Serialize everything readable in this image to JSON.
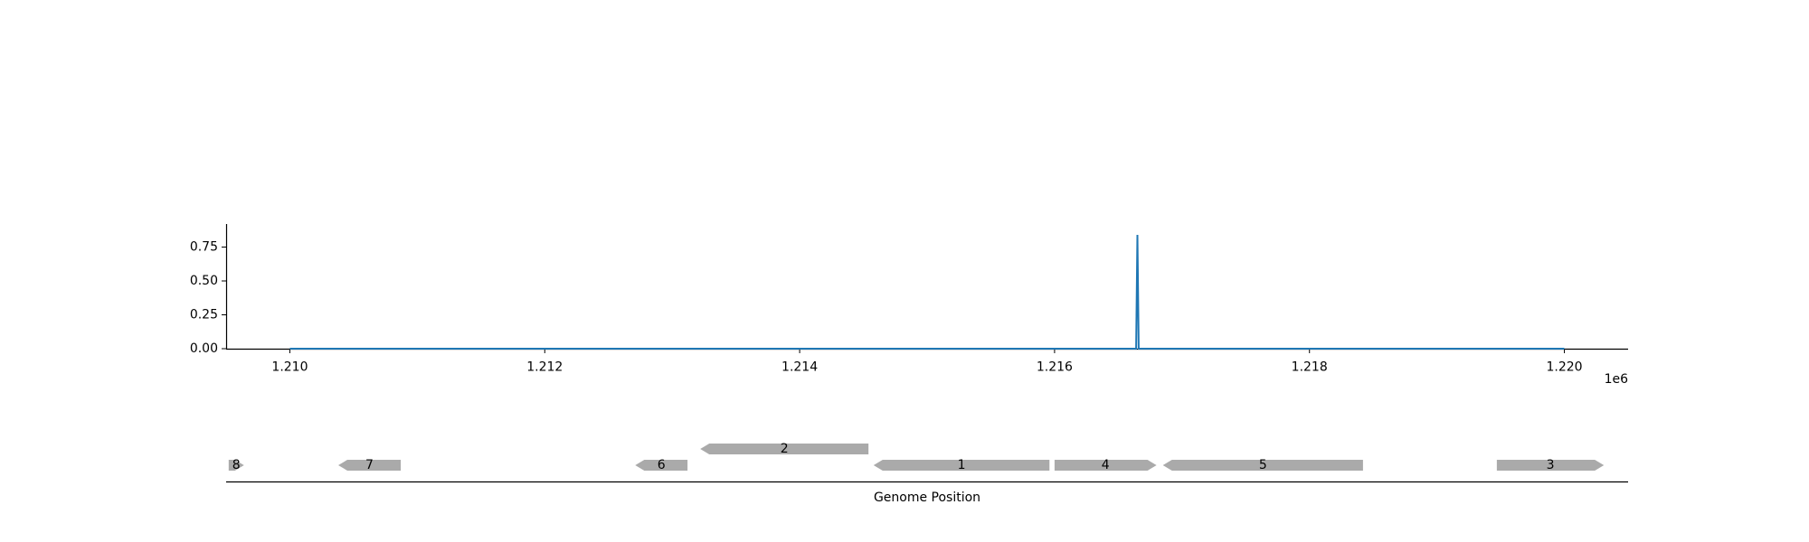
{
  "chart_data": [
    {
      "type": "line",
      "title": "",
      "xlabel": "",
      "ylabel": "",
      "x_offset_label": "1e6",
      "xlim": [
        1209500,
        1220500
      ],
      "ylim": [
        0,
        0.92
      ],
      "x_ticks": [
        1210000,
        1212000,
        1214000,
        1216000,
        1218000,
        1220000
      ],
      "x_tick_labels": [
        "1.210",
        "1.212",
        "1.214",
        "1.216",
        "1.218",
        "1.220"
      ],
      "y_ticks": [
        0,
        0.25,
        0.5,
        0.75
      ],
      "y_tick_labels": [
        "0.00",
        "0.25",
        "0.50",
        "0.75"
      ],
      "grid": false,
      "series": [
        {
          "color": "#1f77b4",
          "x": [
            1210000,
            1216640,
            1216650,
            1216660,
            1220000
          ],
          "y": [
            0,
            0,
            0.84,
            0,
            0
          ]
        }
      ]
    },
    {
      "type": "gene-track",
      "xlabel": "Genome Position",
      "xlim": [
        1209500,
        1220500
      ],
      "feature_color": "#aaaaaa",
      "features": [
        {
          "label": "8",
          "start": 1209520,
          "end": 1209640,
          "strand": 1,
          "row": 0
        },
        {
          "label": "7",
          "start": 1210380,
          "end": 1210870,
          "strand": -1,
          "row": 0
        },
        {
          "label": "6",
          "start": 1212710,
          "end": 1213120,
          "strand": -1,
          "row": 0
        },
        {
          "label": "2",
          "start": 1213220,
          "end": 1214540,
          "strand": -1,
          "row": 1
        },
        {
          "label": "1",
          "start": 1214580,
          "end": 1215960,
          "strand": -1,
          "row": 0
        },
        {
          "label": "4",
          "start": 1216000,
          "end": 1216800,
          "strand": 1,
          "row": 0
        },
        {
          "label": "5",
          "start": 1216850,
          "end": 1218420,
          "strand": -1,
          "row": 0
        },
        {
          "label": "3",
          "start": 1219470,
          "end": 1220310,
          "strand": 1,
          "row": 0
        }
      ]
    }
  ]
}
